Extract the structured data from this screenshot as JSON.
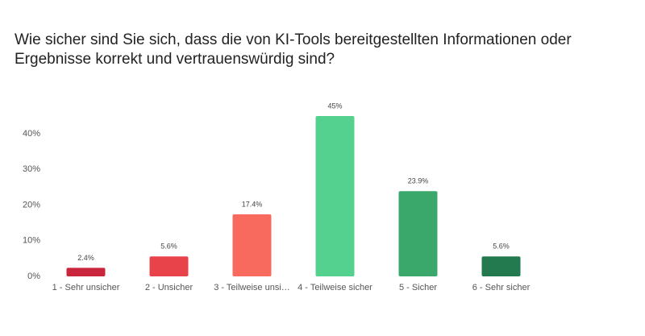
{
  "chart_data": {
    "type": "bar",
    "title": "Wie sicher sind Sie sich, dass die von KI-Tools bereitgestellten Informationen oder Ergebnisse korrekt und vertrauenswürdig sind?",
    "categories": [
      "1 - Sehr unsicher",
      "2 - Unsicher",
      "3 - Teilweise unsi…",
      "4 - Teilweise sicher",
      "5 - Sicher",
      "6 - Sehr sicher"
    ],
    "values": [
      2.4,
      5.6,
      17.4,
      45,
      23.9,
      5.6
    ],
    "value_labels": [
      "2.4%",
      "5.6%",
      "17.4%",
      "45%",
      "23.9%",
      "5.6%"
    ],
    "colors": [
      "#c9253c",
      "#e8434a",
      "#f96a5e",
      "#54d18f",
      "#3aa86b",
      "#237a4f"
    ],
    "ylim": [
      0,
      45
    ],
    "yticks": [
      {
        "value": 0,
        "label": "0%"
      },
      {
        "value": 10,
        "label": "10%"
      },
      {
        "value": 20,
        "label": "20%"
      },
      {
        "value": 30,
        "label": "30%"
      },
      {
        "value": 40,
        "label": "40%"
      }
    ],
    "grid": false
  }
}
